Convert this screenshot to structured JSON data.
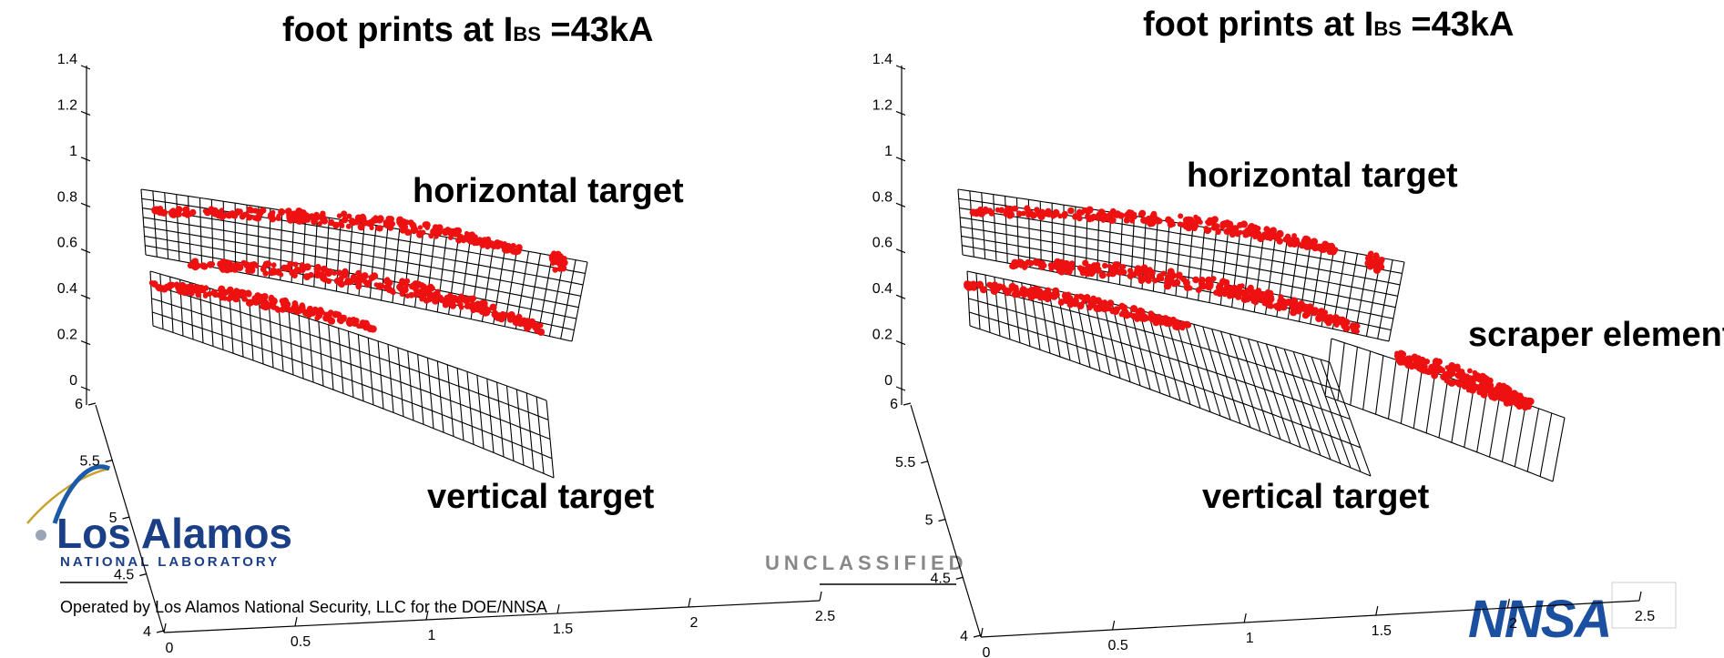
{
  "footer": {
    "org_logo": "Los Alamos",
    "org_sub": "NATIONAL LABORATORY",
    "operated": "Operated by Los Alamos National Security, LLC for the DOE/NNSA",
    "banner": "UNCLASSIFIED",
    "nnsa_logo": "NNSA"
  },
  "chart_data": [
    {
      "type": "scatter",
      "title_main": "foot prints at I",
      "title_sub": "BS",
      "title_tail": " =43kA",
      "zlim": [
        0,
        1.4
      ],
      "z_ticks": [
        "0",
        "0.2",
        "0.4",
        "0.6",
        "0.8",
        "1",
        "1.2",
        "1.4"
      ],
      "ylim": [
        4,
        6
      ],
      "y_ticks": [
        "4",
        "4.5",
        "5",
        "5.5",
        "6"
      ],
      "xlim": [
        0,
        2.5
      ],
      "x_ticks": [
        "0",
        "0.5",
        "1",
        "1.5",
        "2",
        "2.5"
      ],
      "annotations": [
        "horizontal target",
        "vertical target"
      ],
      "surfaces": [
        "horizontal-target",
        "vertical-target"
      ],
      "series": [
        {
          "surface": "horizontal target",
          "x": [
            0.1,
            0.4,
            0.8,
            1.2,
            1.6,
            1.9
          ],
          "y": [
            5.95,
            5.9,
            5.85,
            5.8,
            5.75,
            5.72
          ],
          "z": [
            0.78,
            0.79,
            0.76,
            0.72,
            0.66,
            0.6
          ]
        },
        {
          "surface": "horizontal target",
          "x": [
            0.2,
            0.6,
            1.0,
            1.4,
            1.8,
            2.1
          ],
          "y": [
            5.9,
            5.85,
            5.8,
            5.75,
            5.7,
            5.65
          ],
          "z": [
            0.52,
            0.5,
            0.46,
            0.4,
            0.32,
            0.24
          ]
        },
        {
          "surface": "vertical target",
          "x": [
            0.05,
            0.3,
            0.6,
            0.9
          ],
          "y": [
            5.9,
            5.85,
            5.8,
            5.75
          ],
          "z": [
            0.42,
            0.39,
            0.34,
            0.26
          ]
        }
      ],
      "grid": false
    },
    {
      "type": "scatter",
      "title_main": "foot prints at I",
      "title_sub": "BS",
      "title_tail": " =43kA",
      "zlim": [
        0,
        1.4
      ],
      "z_ticks": [
        "0",
        "0.2",
        "0.4",
        "0.6",
        "0.8",
        "1",
        "1.2",
        "1.4"
      ],
      "ylim": [
        4,
        6
      ],
      "y_ticks": [
        "4",
        "4.5",
        "5",
        "5.5",
        "6"
      ],
      "xlim": [
        0,
        2.5
      ],
      "x_ticks": [
        "0",
        "0.5",
        "1",
        "1.5",
        "2",
        "2.5"
      ],
      "annotations": [
        "horizontal target",
        "vertical target",
        "scraper element"
      ],
      "surfaces": [
        "horizontal-target",
        "vertical-target",
        "scraper-element"
      ],
      "series": [
        {
          "surface": "horizontal target",
          "x": [
            0.1,
            0.4,
            0.8,
            1.2,
            1.6,
            1.9
          ],
          "y": [
            5.95,
            5.9,
            5.85,
            5.8,
            5.75,
            5.72
          ],
          "z": [
            0.78,
            0.79,
            0.76,
            0.72,
            0.66,
            0.6
          ]
        },
        {
          "surface": "horizontal target",
          "x": [
            0.2,
            0.6,
            1.0,
            1.4,
            1.8,
            2.1
          ],
          "y": [
            5.9,
            5.85,
            5.8,
            5.75,
            5.7,
            5.65
          ],
          "z": [
            0.52,
            0.5,
            0.46,
            0.4,
            0.32,
            0.24
          ]
        },
        {
          "surface": "vertical target",
          "x": [
            0.05,
            0.3,
            0.6,
            0.9
          ],
          "y": [
            5.9,
            5.85,
            5.8,
            5.75
          ],
          "z": [
            0.42,
            0.39,
            0.34,
            0.26
          ]
        },
        {
          "surface": "scraper element",
          "x": [
            1.9,
            2.05,
            2.2,
            2.35
          ],
          "y": [
            5.6,
            5.55,
            5.5,
            5.45
          ],
          "z": [
            0.15,
            0.1,
            0.05,
            0.0
          ]
        }
      ],
      "grid": false
    }
  ]
}
